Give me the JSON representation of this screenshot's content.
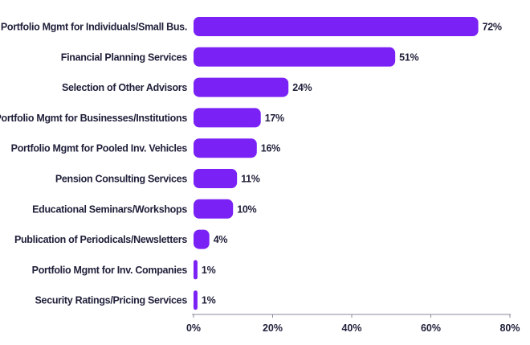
{
  "chart_data": {
    "type": "bar",
    "orientation": "horizontal",
    "categories": [
      "Portfolio Mgmt for Individuals/Small Bus.",
      "Financial Planning Services",
      "Selection of Other Advisors",
      "Portfolio Mgmt for Businesses/Institutions",
      "Portfolio Mgmt for Pooled Inv. Vehicles",
      "Pension Consulting Services",
      "Educational Seminars/Workshops",
      "Publication of Periodicals/Newsletters",
      "Portfolio Mgmt for Inv. Companies",
      "Security Ratings/Pricing Services"
    ],
    "values": [
      72,
      51,
      24,
      17,
      16,
      11,
      10,
      4,
      1,
      1
    ],
    "value_labels": [
      "72%",
      "51%",
      "24%",
      "17%",
      "16%",
      "11%",
      "10%",
      "4%",
      "1%",
      "1%"
    ],
    "xlim": [
      0,
      80
    ],
    "xticks": [
      0,
      20,
      40,
      60,
      80
    ],
    "xtick_labels": [
      "0%",
      "20%",
      "40%",
      "60%",
      "80%"
    ],
    "grid": false,
    "title": "",
    "xlabel": "",
    "ylabel": "",
    "colors": {
      "bar": "#7a22f5",
      "text": "#1f1f3a",
      "axis": "#8a8a9a"
    }
  }
}
